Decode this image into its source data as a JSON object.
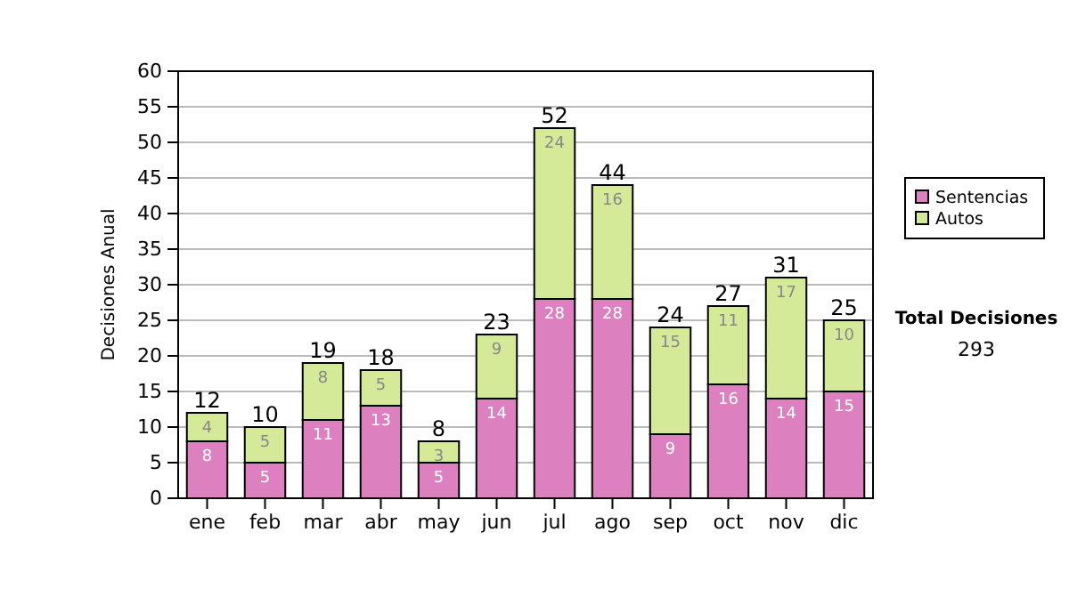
{
  "chart_data": {
    "type": "bar",
    "stacked": true,
    "ylabel": "Decisiones Anual",
    "categories": [
      "ene",
      "feb",
      "mar",
      "abr",
      "may",
      "jun",
      "jul",
      "ago",
      "sep",
      "oct",
      "nov",
      "dic"
    ],
    "series": [
      {
        "name": "Sentencias",
        "color": "#dd80c0",
        "values": [
          8,
          5,
          11,
          13,
          5,
          14,
          28,
          28,
          9,
          16,
          14,
          15
        ]
      },
      {
        "name": "Autos",
        "color": "#d4ea98",
        "values": [
          4,
          5,
          8,
          5,
          3,
          9,
          24,
          16,
          15,
          11,
          17,
          10
        ]
      }
    ],
    "totals": [
      "12",
      "10",
      "19",
      "18",
      "8",
      "23",
      "52",
      "44",
      "24",
      "27",
      "31",
      "25"
    ],
    "data_labels": true,
    "ylim": [
      0,
      60
    ],
    "yticks": [
      0,
      5,
      10,
      15,
      20,
      25,
      30,
      35,
      40,
      45,
      50,
      55,
      60
    ],
    "grid": "y",
    "legend": "right",
    "annotations": [
      "Total Decisiones",
      "293"
    ]
  }
}
